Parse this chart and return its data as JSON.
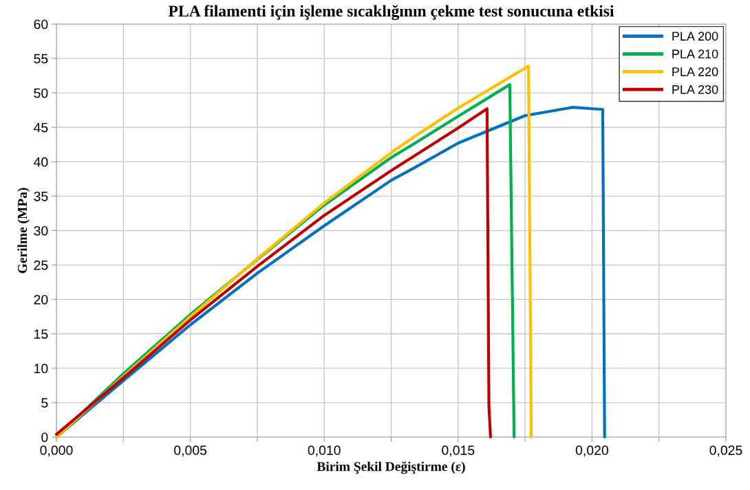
{
  "chart_data": {
    "type": "line",
    "title": "PLA filamenti için işleme sıcaklığının çekme test sonucuna etkisi",
    "xlabel": "Birim Şekil Değiştirme (ε)",
    "ylabel": "Gerilme (MPa)",
    "xlim": [
      0,
      0.025
    ],
    "ylim": [
      0,
      60
    ],
    "xticks": [
      {
        "value": 0,
        "label": "0,000"
      },
      {
        "value": 0.0025,
        "label": null
      },
      {
        "value": 0.005,
        "label": "0,005"
      },
      {
        "value": 0.0075,
        "label": null
      },
      {
        "value": 0.01,
        "label": "0,010"
      },
      {
        "value": 0.0125,
        "label": null
      },
      {
        "value": 0.015,
        "label": "0,015"
      },
      {
        "value": 0.0175,
        "label": null
      },
      {
        "value": 0.02,
        "label": "0,020"
      },
      {
        "value": 0.0225,
        "label": null
      },
      {
        "value": 0.025,
        "label": "0,025"
      }
    ],
    "yticks": [
      0,
      5,
      10,
      15,
      20,
      25,
      30,
      35,
      40,
      45,
      50,
      55,
      60
    ],
    "grid": true,
    "legend": "top right",
    "line_style": "solid",
    "marker": "none",
    "series": [
      {
        "name": "PLA 200",
        "color": "#0070c0",
        "x": [
          0,
          0.0025,
          0.005,
          0.0075,
          0.01,
          0.0125,
          0.01331,
          0.015,
          0.0175,
          0.01927,
          0.0204,
          0.02047
        ],
        "values": [
          0,
          8.2,
          16.3,
          23.8,
          30.7,
          37.3,
          39.0,
          42.7,
          46.7,
          47.9,
          47.6,
          0
        ]
      },
      {
        "name": "PLA 210",
        "color": "#00b050",
        "x": [
          0,
          0.0025,
          0.005,
          0.0075,
          0.01,
          0.0125,
          0.01331,
          0.015,
          0.01693,
          0.01709
        ],
        "values": [
          0,
          9.2,
          17.8,
          25.8,
          33.7,
          40.6,
          42.5,
          46.6,
          51.2,
          0
        ]
      },
      {
        "name": "PLA 220",
        "color": "#ffc000",
        "x": [
          0,
          0.0025,
          0.005,
          0.0075,
          0.01,
          0.0125,
          0.01331,
          0.015,
          0.01763,
          0.01773
        ],
        "values": [
          0,
          8.8,
          17.5,
          25.9,
          34.0,
          41.3,
          43.5,
          47.8,
          53.9,
          0
        ]
      },
      {
        "name": "PLA 230",
        "color": "#c00000",
        "x": [
          0,
          0.0025,
          0.005,
          0.0075,
          0.01,
          0.0125,
          0.01331,
          0.015,
          0.01608,
          0.01615,
          0.01621
        ],
        "values": [
          0.4,
          8.6,
          17.0,
          24.8,
          32.2,
          38.7,
          40.7,
          44.9,
          47.7,
          4.6,
          0
        ]
      }
    ]
  }
}
